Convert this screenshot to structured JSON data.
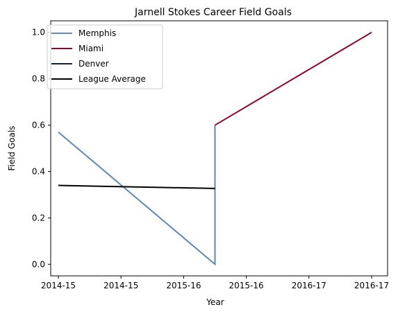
{
  "chart_data": {
    "type": "line",
    "title": "Jarnell Stokes Career Field Goals",
    "xlabel": "Year",
    "ylabel": "Field Goals",
    "x_range": [
      0,
      1
    ],
    "ylim": [
      -0.05,
      1.05
    ],
    "x_ticks": [
      {
        "value": 0.0,
        "label": "2014-15"
      },
      {
        "value": 0.2,
        "label": "2014-15"
      },
      {
        "value": 0.4,
        "label": "2015-16"
      },
      {
        "value": 0.6,
        "label": "2015-16"
      },
      {
        "value": 0.8,
        "label": "2016-17"
      },
      {
        "value": 1.0,
        "label": "2016-17"
      }
    ],
    "y_ticks": [
      0.0,
      0.2,
      0.4,
      0.6,
      0.8,
      1.0
    ],
    "y_tick_labels": [
      "0.0",
      "0.2",
      "0.4",
      "0.6",
      "0.8",
      "1.0"
    ],
    "grid": false,
    "legend_position": "upper-left",
    "series": [
      {
        "name": "Memphis",
        "color": "#5b87bb",
        "points": [
          [
            0.0,
            0.57
          ],
          [
            0.5,
            0.0
          ],
          [
            0.5,
            0.6
          ]
        ]
      },
      {
        "name": "Miami",
        "color": "#98002e",
        "points": [
          [
            0.5,
            0.6
          ],
          [
            1.0,
            1.0
          ]
        ]
      },
      {
        "name": "Denver",
        "color": "#0e2240",
        "points": []
      },
      {
        "name": "League Average",
        "color": "#000000",
        "points": [
          [
            0.0,
            0.34
          ],
          [
            0.5,
            0.327
          ]
        ]
      }
    ]
  }
}
